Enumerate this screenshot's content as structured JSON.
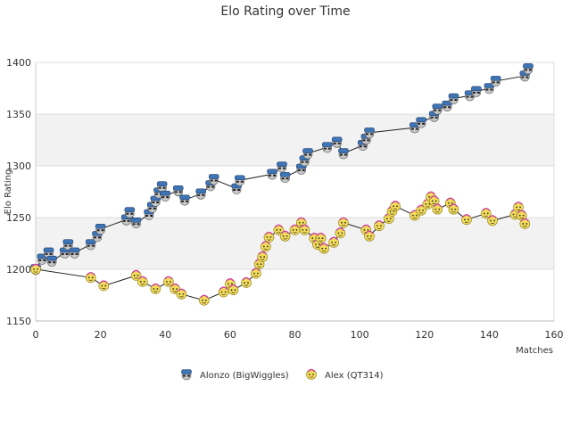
{
  "chart_data": {
    "type": "line",
    "title": "Elo Rating over Time",
    "xlabel": "Matches",
    "ylabel": "Elo Rating",
    "xlim": [
      0,
      160
    ],
    "ylim": [
      1150,
      1400
    ],
    "x_ticks": [
      "0",
      "20",
      "40",
      "60",
      "80",
      "100",
      "120",
      "140",
      "160"
    ],
    "y_ticks": [
      "1150",
      "1200",
      "1250",
      "1300",
      "1350",
      "1400"
    ],
    "grid": "horizontal bands",
    "legend_position": "bottom-center",
    "series": [
      {
        "name": "Alonzo (BigWiggles)",
        "marker": "blue-avatar",
        "color": "#4a78b0",
        "points": [
          [
            0,
            1200
          ],
          [
            2,
            1210
          ],
          [
            4,
            1216
          ],
          [
            5,
            1208
          ],
          [
            9,
            1216
          ],
          [
            10,
            1224
          ],
          [
            12,
            1216
          ],
          [
            17,
            1224
          ],
          [
            19,
            1232
          ],
          [
            20,
            1239
          ],
          [
            28,
            1248
          ],
          [
            29,
            1255
          ],
          [
            31,
            1245
          ],
          [
            35,
            1253
          ],
          [
            36,
            1260
          ],
          [
            37,
            1266
          ],
          [
            38,
            1274
          ],
          [
            39,
            1280
          ],
          [
            40,
            1271
          ],
          [
            44,
            1276
          ],
          [
            46,
            1267
          ],
          [
            51,
            1273
          ],
          [
            54,
            1281
          ],
          [
            55,
            1287
          ],
          [
            62,
            1278
          ],
          [
            63,
            1286
          ],
          [
            73,
            1292
          ],
          [
            76,
            1299
          ],
          [
            77,
            1289
          ],
          [
            82,
            1297
          ],
          [
            83,
            1305
          ],
          [
            84,
            1312
          ],
          [
            90,
            1318
          ],
          [
            93,
            1323
          ],
          [
            95,
            1312
          ],
          [
            101,
            1320
          ],
          [
            102,
            1326
          ],
          [
            103,
            1332
          ],
          [
            117,
            1337
          ],
          [
            119,
            1342
          ],
          [
            123,
            1348
          ],
          [
            124,
            1355
          ],
          [
            127,
            1358
          ],
          [
            129,
            1365
          ],
          [
            134,
            1368
          ],
          [
            136,
            1372
          ],
          [
            140,
            1375
          ],
          [
            142,
            1382
          ],
          [
            151,
            1387
          ],
          [
            152,
            1394
          ]
        ]
      },
      {
        "name": "Alex (QT314)",
        "marker": "yellow-avatar",
        "color": "#f0d040",
        "points": [
          [
            0,
            1200
          ],
          [
            17,
            1192
          ],
          [
            21,
            1184
          ],
          [
            31,
            1194
          ],
          [
            33,
            1188
          ],
          [
            37,
            1181
          ],
          [
            41,
            1188
          ],
          [
            43,
            1181
          ],
          [
            45,
            1176
          ],
          [
            52,
            1170
          ],
          [
            58,
            1178
          ],
          [
            60,
            1186
          ],
          [
            61,
            1180
          ],
          [
            65,
            1187
          ],
          [
            68,
            1196
          ],
          [
            69,
            1205
          ],
          [
            70,
            1212
          ],
          [
            71,
            1222
          ],
          [
            72,
            1231
          ],
          [
            75,
            1238
          ],
          [
            77,
            1232
          ],
          [
            80,
            1238
          ],
          [
            82,
            1245
          ],
          [
            83,
            1238
          ],
          [
            86,
            1230
          ],
          [
            87,
            1224
          ],
          [
            88,
            1230
          ],
          [
            89,
            1220
          ],
          [
            92,
            1226
          ],
          [
            94,
            1235
          ],
          [
            95,
            1245
          ],
          [
            102,
            1238
          ],
          [
            103,
            1232
          ],
          [
            106,
            1242
          ],
          [
            109,
            1249
          ],
          [
            110,
            1256
          ],
          [
            111,
            1261
          ],
          [
            117,
            1252
          ],
          [
            119,
            1257
          ],
          [
            121,
            1263
          ],
          [
            122,
            1270
          ],
          [
            123,
            1266
          ],
          [
            124,
            1258
          ],
          [
            128,
            1264
          ],
          [
            129,
            1258
          ],
          [
            133,
            1248
          ],
          [
            139,
            1254
          ],
          [
            141,
            1247
          ],
          [
            148,
            1253
          ],
          [
            149,
            1260
          ],
          [
            150,
            1252
          ],
          [
            151,
            1244
          ]
        ]
      }
    ]
  }
}
